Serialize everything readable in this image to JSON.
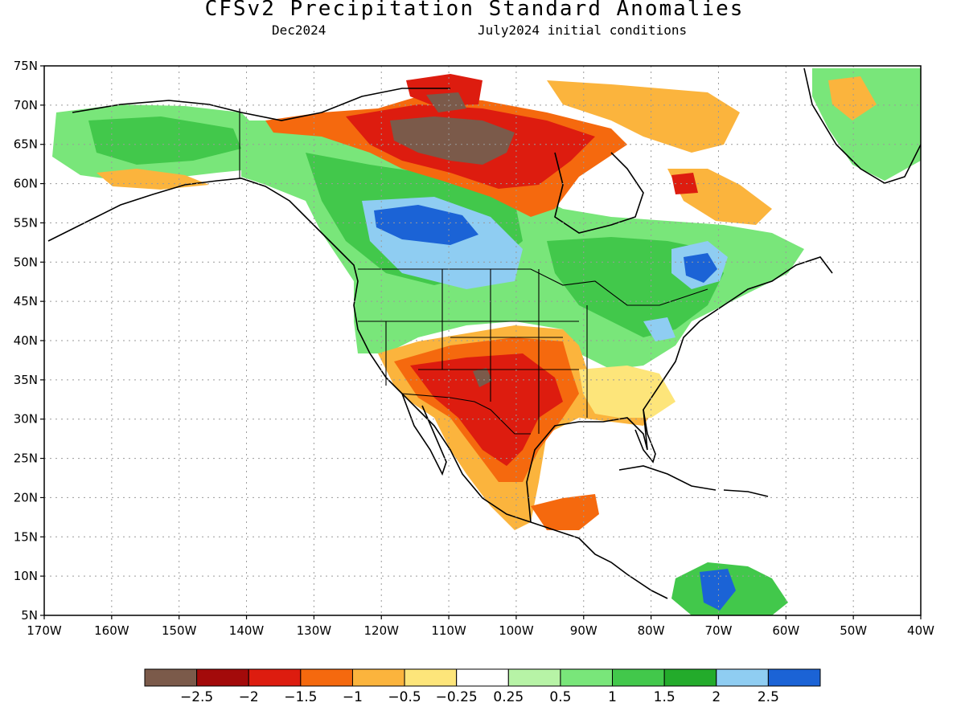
{
  "title": "CFSv2 Precipitation Standard Anomalies",
  "subtitle_left": "Dec2024",
  "subtitle_right": "July2024 initial conditions",
  "lat_ticks": [
    "75N",
    "70N",
    "65N",
    "60N",
    "55N",
    "50N",
    "45N",
    "40N",
    "35N",
    "30N",
    "25N",
    "20N",
    "15N",
    "10N",
    "5N"
  ],
  "lon_ticks": [
    "170W",
    "160W",
    "150W",
    "140W",
    "130W",
    "120W",
    "110W",
    "100W",
    "90W",
    "80W",
    "70W",
    "60W",
    "50W",
    "40W"
  ],
  "colorbar": {
    "colors": [
      "#7b5a4a",
      "#a30a0a",
      "#dd1c0f",
      "#f5690e",
      "#fbb43d",
      "#fde57a",
      "#ffffff",
      "#b7f3a6",
      "#79e67a",
      "#42c84b",
      "#23ab2b",
      "#8fcdf2",
      "#1b63d6"
    ],
    "labels": [
      "−2.5",
      "−2",
      "−1.5",
      "−1",
      "−0.5",
      "−0.25",
      "0.25",
      "0.5",
      "1",
      "1.5",
      "2",
      "2.5"
    ]
  },
  "anomaly_regions": [
    {
      "name": "northwest-canada-wet",
      "level": "0.5 to 1.5",
      "color": "#42c84b"
    },
    {
      "name": "alaska-wet",
      "level": "0.5 to 1",
      "color": "#79e67a"
    },
    {
      "name": "prairies-very-wet",
      "level": "2 to 2.5+",
      "color": "#1b63d6"
    },
    {
      "name": "quebec-very-wet",
      "level": "2 to 2.5+",
      "color": "#1b63d6"
    },
    {
      "name": "southwest-us-dry",
      "level": "-1 to -2",
      "color": "#dd1c0f"
    },
    {
      "name": "new-mexico-very-dry",
      "level": "< -2.5",
      "color": "#7b5a4a"
    },
    {
      "name": "nunavut-very-dry",
      "level": "< -2.5",
      "color": "#7b5a4a"
    },
    {
      "name": "hudson-bay-dry",
      "level": "-1 to -2",
      "color": "#dd1c0f"
    },
    {
      "name": "southeast-us-dry",
      "level": "-0.25 to -0.5",
      "color": "#fde57a"
    },
    {
      "name": "greenland-wet",
      "level": "0.5 to 1",
      "color": "#79e67a"
    },
    {
      "name": "colombia-wet",
      "level": "1.5 to 2.5+",
      "color": "#23ab2b"
    }
  ]
}
